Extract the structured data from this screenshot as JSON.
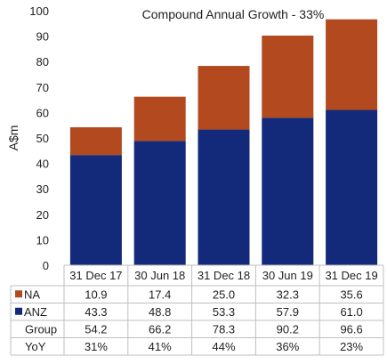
{
  "chart_data": {
    "type": "bar",
    "stacked": true,
    "title": "Compound Annual Growth - 33%",
    "ylabel": "A$m",
    "xlabel": "",
    "ylim": [
      0,
      100
    ],
    "yticks": [
      0,
      10,
      20,
      30,
      40,
      50,
      60,
      70,
      80,
      90,
      100
    ],
    "grid": false,
    "categories": [
      "31 Dec 17",
      "30 Jun 18",
      "31 Dec 18",
      "30 Jun 19",
      "31 Dec 19"
    ],
    "series": [
      {
        "name": "ANZ",
        "color": "#13297a",
        "values": [
          43.3,
          48.8,
          53.3,
          57.9,
          61.0
        ]
      },
      {
        "name": "NA",
        "color": "#b34a1f",
        "values": [
          10.9,
          17.4,
          25.0,
          32.3,
          35.6
        ]
      }
    ],
    "table": {
      "rows": [
        {
          "label": "NA",
          "series": "NA",
          "values": [
            "10.9",
            "17.4",
            "25.0",
            "32.3",
            "35.6"
          ]
        },
        {
          "label": "ANZ",
          "series": "ANZ",
          "values": [
            "43.3",
            "48.8",
            "53.3",
            "57.9",
            "61.0"
          ]
        },
        {
          "label": "Group",
          "values": [
            "54.2",
            "66.2",
            "78.3",
            "90.2",
            "96.6"
          ]
        },
        {
          "label": "YoY",
          "values": [
            "31%",
            "41%",
            "44%",
            "36%",
            "23%"
          ]
        }
      ]
    }
  }
}
